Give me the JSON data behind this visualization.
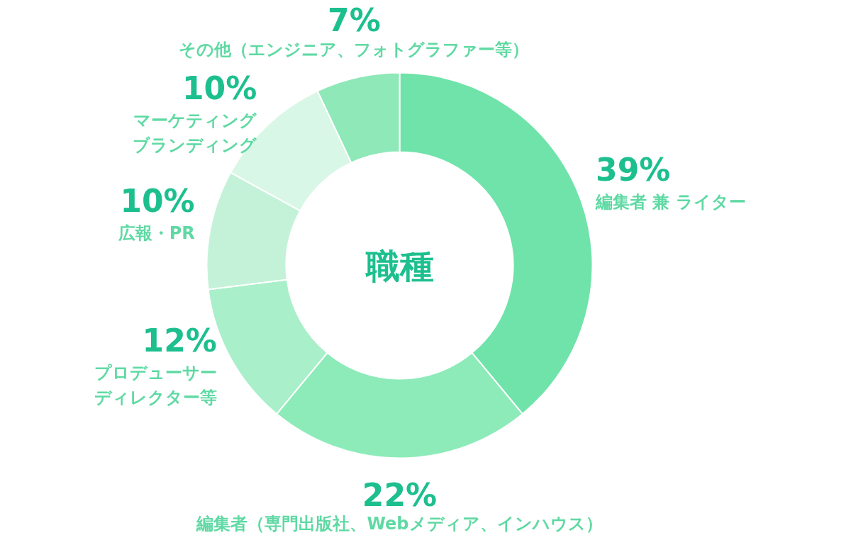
{
  "chart_data": {
    "type": "donut",
    "title": "職種",
    "categories": [
      "編集者 兼 ライター",
      "編集者（専門出版社、Webメディア、インハウス）",
      "プロデューサーディレクター等",
      "広報・PR",
      "マーケティングブランディング",
      "その他（エンジニア、フォトグラファー等）"
    ],
    "values": [
      39,
      22,
      12,
      10,
      10,
      7
    ],
    "value_labels": [
      "39%",
      "22%",
      "12%",
      "10%",
      "10%",
      "7%"
    ],
    "colors": [
      "#6fe3aa",
      "#8debb9",
      "#a9efca",
      "#c4f2d8",
      "#d9f7e6",
      "#8ee8b8"
    ]
  }
}
